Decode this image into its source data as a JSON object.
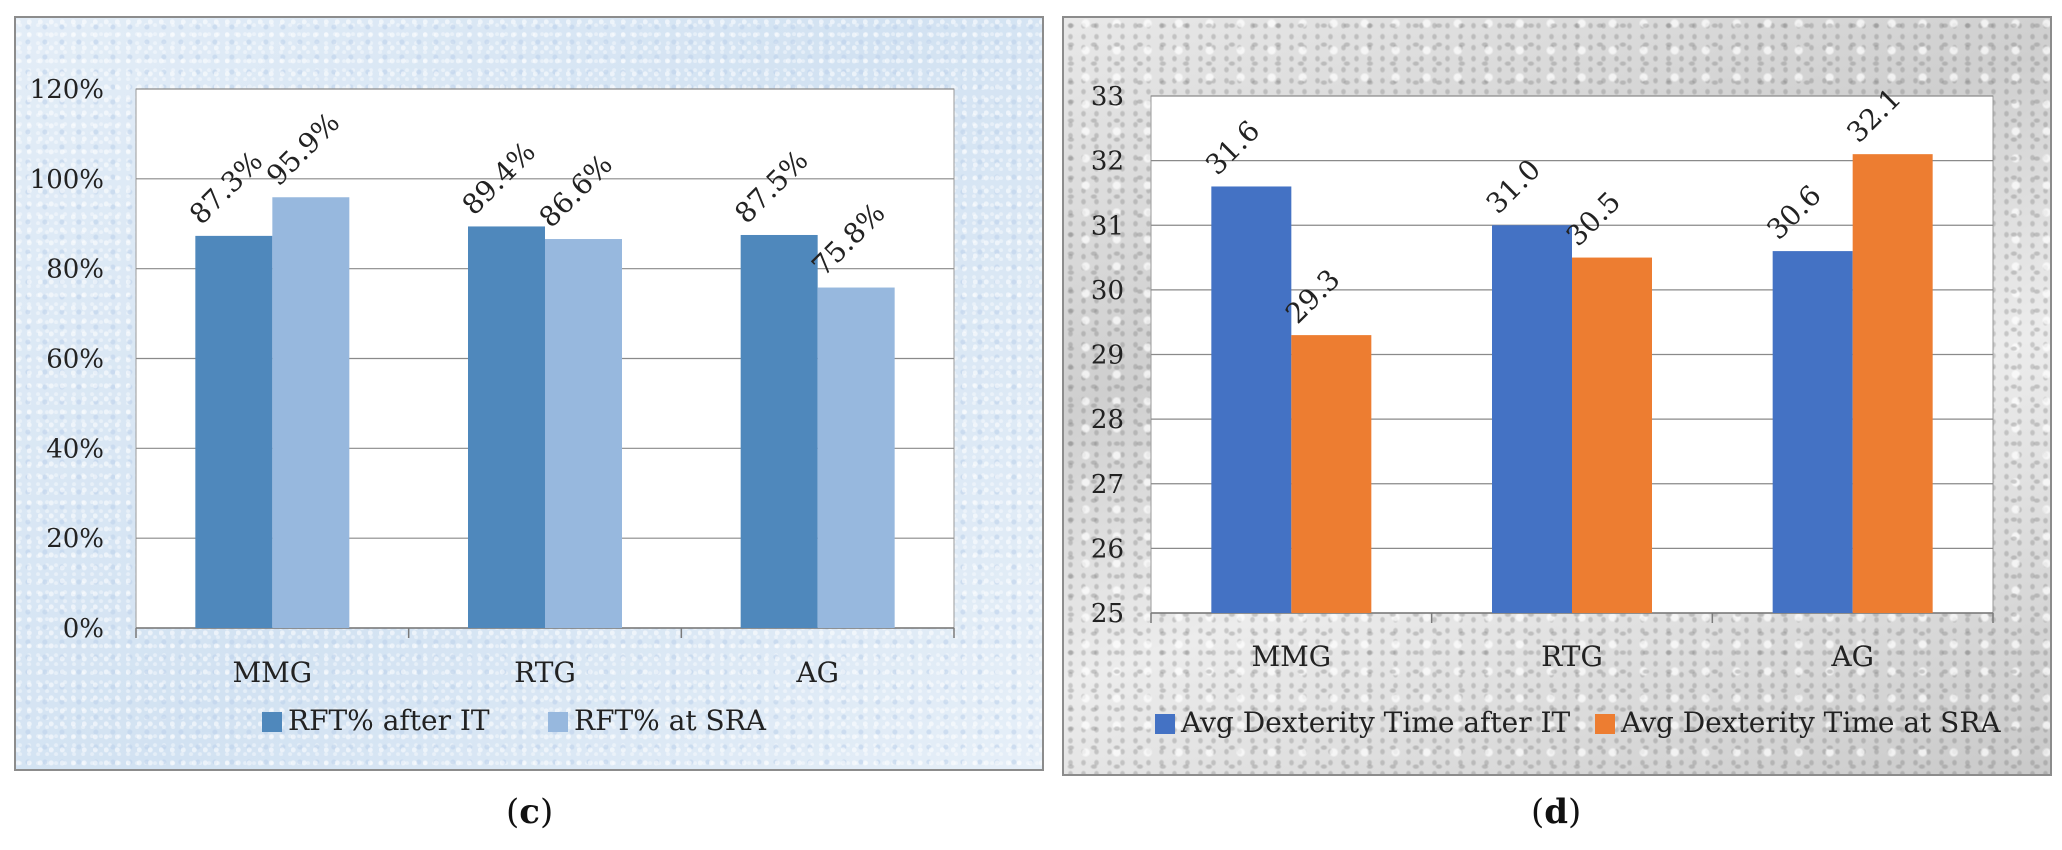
{
  "colors": {
    "c_series1": "#4f88bc",
    "c_series2": "#97b8de",
    "d_series1": "#4472c4",
    "d_series2": "#ed7d31"
  },
  "panels": {
    "c": {
      "open": "(",
      "letter": "c",
      "close": ")"
    },
    "d": {
      "open": "(",
      "letter": "d",
      "close": ")"
    }
  },
  "chart_data": [
    {
      "id": "c",
      "type": "bar",
      "categories": [
        "MMG",
        "RTG",
        "AG"
      ],
      "series": [
        {
          "name": "RFT% after IT",
          "values": [
            87.3,
            89.4,
            87.5
          ],
          "labels": [
            "87.3%",
            "89.4%",
            "87.5%"
          ]
        },
        {
          "name": "RFT% at SRA",
          "values": [
            95.9,
            86.6,
            75.8
          ],
          "labels": [
            "95.9%",
            "86.6%",
            "75.8%"
          ]
        }
      ],
      "ylim": [
        0,
        120
      ],
      "yticks": [
        0,
        20,
        40,
        60,
        80,
        100,
        120
      ],
      "ytick_labels": [
        "0%",
        "20%",
        "40%",
        "60%",
        "80%",
        "100%",
        "120%"
      ],
      "grid": true,
      "legend": "bottom",
      "title": "",
      "xlabel": "",
      "ylabel": ""
    },
    {
      "id": "d",
      "type": "bar",
      "categories": [
        "MMG",
        "RTG",
        "AG"
      ],
      "series": [
        {
          "name": "Avg Dexterity Time after IT",
          "values": [
            31.6,
            31.0,
            30.6
          ],
          "labels": [
            "31.6",
            "31.0",
            "30.6"
          ]
        },
        {
          "name": "Avg Dexterity Time at SRA",
          "values": [
            29.3,
            30.5,
            32.1
          ],
          "labels": [
            "29.3",
            "30.5",
            "32.1"
          ]
        }
      ],
      "ylim": [
        25,
        33
      ],
      "yticks": [
        25,
        26,
        27,
        28,
        29,
        30,
        31,
        32,
        33
      ],
      "ytick_labels": [
        "25",
        "26",
        "27",
        "28",
        "29",
        "30",
        "31",
        "32",
        "33"
      ],
      "grid": true,
      "legend": "bottom",
      "title": "",
      "xlabel": "",
      "ylabel": ""
    }
  ]
}
